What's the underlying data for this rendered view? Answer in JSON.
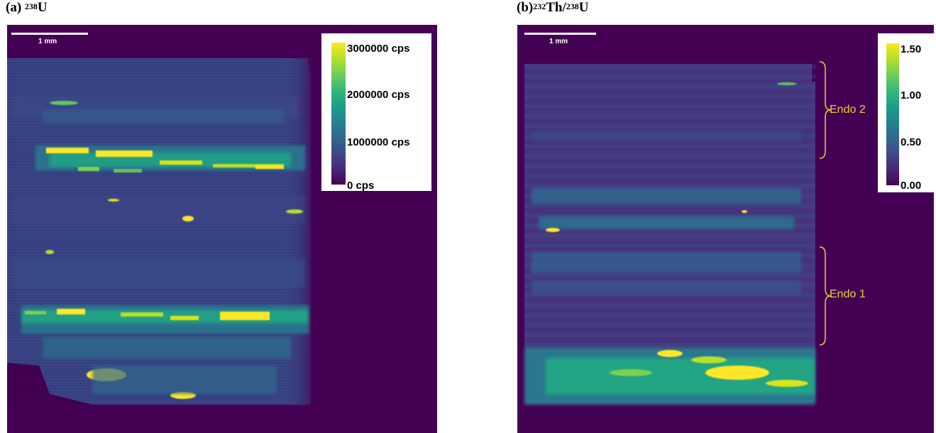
{
  "panel_a": {
    "label_prefix": "(a) ",
    "label_sup": "238",
    "label_main": "U",
    "scale_bar_label": "1 mm",
    "colorbar_ticks": [
      "3000000 cps",
      "2000000 cps",
      "1000000 cps",
      "0 cps"
    ]
  },
  "panel_b": {
    "label_prefix": "(b)",
    "label_sup1": "232",
    "label_mid": "Th/",
    "label_sup2": "238",
    "label_main": "U",
    "scale_bar_label": "1 mm",
    "colorbar_ticks": [
      "1.50",
      "1.00",
      "0.50",
      "0.00"
    ],
    "annotations": [
      "Endo 2",
      "Endo 1"
    ]
  },
  "colors": {
    "viridis_dark": "#440154",
    "viridis_blue": "#3b528b",
    "viridis_teal": "#21918c",
    "viridis_green": "#5ec962",
    "viridis_yellow": "#fde725",
    "annotation": "#f2c83a"
  }
}
